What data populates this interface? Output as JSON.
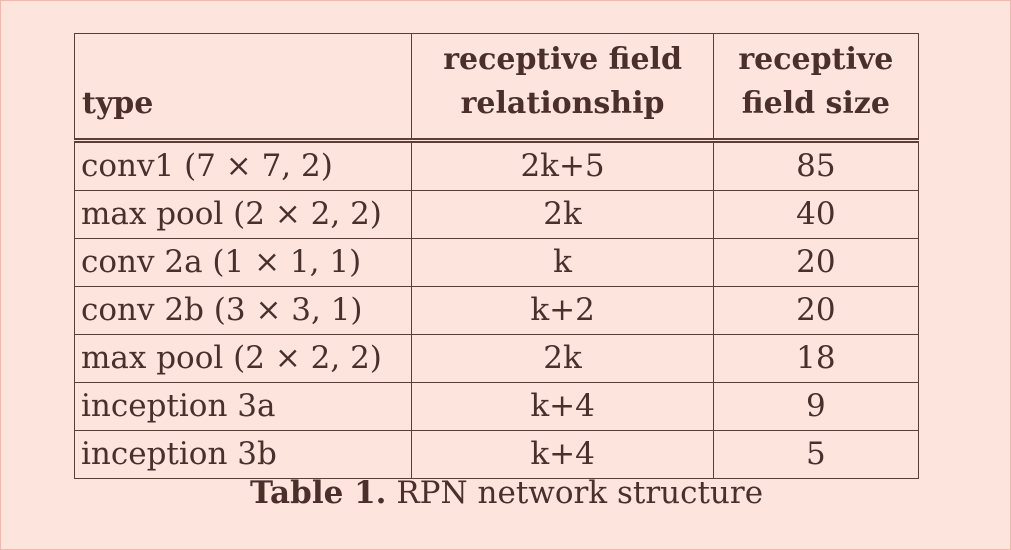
{
  "table": {
    "headers": {
      "type": "type",
      "relationship_line1": "receptive field",
      "relationship_line2": "relationship",
      "size_line1": "receptive",
      "size_line2": "field size"
    },
    "rows": [
      {
        "type": "conv1 (7 × 7, 2)",
        "relationship": "2k+5",
        "size": "85"
      },
      {
        "type": "max pool (2 × 2, 2)",
        "relationship": "2k",
        "size": "40"
      },
      {
        "type": "conv 2a (1 × 1, 1)",
        "relationship": "k",
        "size": "20"
      },
      {
        "type": "conv 2b (3 × 3, 1)",
        "relationship": "k+2",
        "size": "20"
      },
      {
        "type": "max pool (2 × 2, 2)",
        "relationship": "2k",
        "size": "18"
      },
      {
        "type": "inception 3a",
        "relationship": "k+4",
        "size": "9"
      },
      {
        "type": "inception 3b",
        "relationship": "k+4",
        "size": "5"
      }
    ]
  },
  "caption": {
    "label": "Table 1.",
    "text": "RPN network structure"
  }
}
